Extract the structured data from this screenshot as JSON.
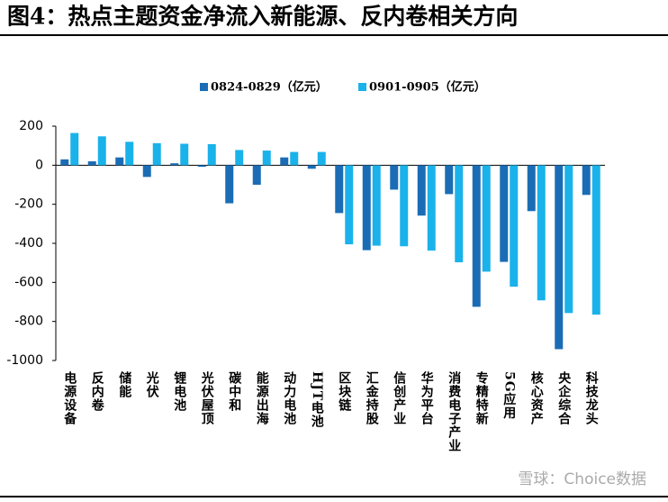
{
  "chart_data": {
    "type": "bar",
    "title": "图4：热点主题资金净流入新能源、反内卷相关方向",
    "watermark": "雪球：Choice数据",
    "categories": [
      "电源设备",
      "反内卷",
      "储能",
      "光伏",
      "锂电池",
      "光伏屋顶",
      "碳中和",
      "能源出海",
      "动力电池",
      "HJT电池",
      "区块链",
      "汇金持股",
      "信创产业",
      "华为平台",
      "消费电子产业",
      "专精特新",
      "5G应用",
      "核心资产",
      "央企综合",
      "科技龙头"
    ],
    "series": [
      {
        "name": "0824-0829（亿元）",
        "color": "#1a6db5",
        "values": [
          30,
          20,
          40,
          -60,
          10,
          -8,
          -195,
          -100,
          40,
          -18,
          -245,
          -435,
          -125,
          -258,
          -148,
          -725,
          -495,
          -235,
          -942,
          -152
        ]
      },
      {
        "name": "0901-0905（亿元）",
        "color": "#1ab2ea",
        "values": [
          165,
          148,
          120,
          113,
          110,
          108,
          78,
          75,
          68,
          68,
          -405,
          -412,
          -415,
          -437,
          -497,
          -545,
          -622,
          -692,
          -757,
          -765
        ]
      }
    ],
    "ylim": [
      -1000,
      200
    ],
    "yticks": [
      200,
      0,
      -200,
      -400,
      -600,
      -800,
      -1000
    ],
    "legend": "top"
  }
}
